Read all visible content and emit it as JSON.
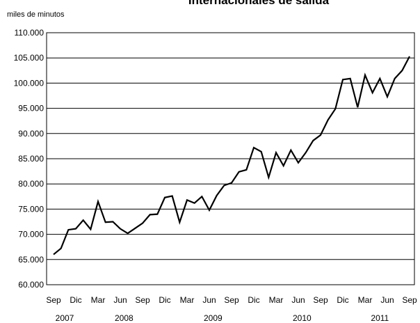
{
  "chart_data": {
    "type": "line",
    "title": "Internacionales de salida",
    "y_axis_label": "miles de minutos",
    "categories": [
      "Sep",
      null,
      null,
      "Dic",
      null,
      null,
      "Mar",
      null,
      null,
      "Jun",
      null,
      null,
      "Sep",
      null,
      null,
      "Dic",
      null,
      null,
      "Mar",
      null,
      null,
      "Jun",
      null,
      null,
      "Sep",
      null,
      null,
      "Dic",
      null,
      null,
      "Mar",
      null,
      null,
      "Jun",
      null,
      null,
      "Sep",
      null,
      null,
      "Dic",
      null,
      null,
      "Mar",
      null,
      null,
      "Jun",
      null,
      null,
      "Sep"
    ],
    "year_labels": [
      "2007",
      "2008",
      "2009",
      "2010",
      "2011"
    ],
    "series": [
      {
        "color": "#000000",
        "values": [
          66000,
          67200,
          70900,
          71100,
          72800,
          71000,
          76500,
          72400,
          72500,
          71100,
          70200,
          71200,
          72200,
          73900,
          74000,
          77300,
          77600,
          72400,
          76800,
          76200,
          77500,
          74800,
          77700,
          79700,
          80200,
          82400,
          82800,
          87200,
          86400,
          81300,
          86200,
          83600,
          86700,
          84200,
          86200,
          88600,
          89700,
          92700,
          94900,
          100700,
          100900,
          95200,
          101600,
          98100,
          100900,
          97300,
          100900,
          102500,
          105300
        ]
      }
    ],
    "ylim": [
      60000,
      110000
    ],
    "yticks": [
      {
        "value": 60000,
        "label": "60.000"
      },
      {
        "value": 65000,
        "label": "65.000"
      },
      {
        "value": 70000,
        "label": "70.000"
      },
      {
        "value": 75000,
        "label": "75.000"
      },
      {
        "value": 80000,
        "label": "80.000"
      },
      {
        "value": 85000,
        "label": "85.000"
      },
      {
        "value": 90000,
        "label": "90.000"
      },
      {
        "value": 95000,
        "label": "95.000"
      },
      {
        "value": 100000,
        "label": "100.000"
      },
      {
        "value": 105000,
        "label": "105.000"
      },
      {
        "value": 110000,
        "label": "110.000"
      }
    ],
    "grid": true
  }
}
